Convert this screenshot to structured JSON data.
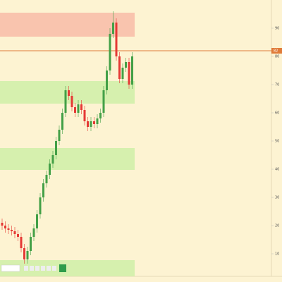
{
  "chart_data": {
    "type": "candlestick",
    "ylim": [
      2,
      100
    ],
    "yticks": [
      10,
      20,
      30,
      40,
      50,
      60,
      70,
      80,
      90
    ],
    "up_color": "#43a047",
    "down_color": "#e53935",
    "open": [
      21,
      20,
      19,
      18.5,
      18,
      17,
      16,
      12,
      8,
      11,
      16,
      19,
      24,
      30,
      35,
      38,
      42,
      45,
      50,
      54,
      60,
      68,
      66,
      62,
      60,
      63,
      61,
      57,
      55,
      57,
      56,
      58,
      60,
      68,
      75,
      88,
      92,
      80,
      72,
      76,
      78,
      70
    ],
    "high": [
      22.5,
      21.5,
      20.5,
      20,
      19.5,
      18.5,
      17.5,
      13.5,
      12.5,
      17.5,
      20.5,
      25.5,
      31.5,
      36.5,
      39.5,
      43.5,
      46.5,
      51.5,
      55.5,
      61.5,
      69.5,
      69.5,
      67.5,
      63.5,
      64.5,
      64.5,
      62.5,
      58.5,
      58.5,
      58.5,
      59.5,
      61.5,
      69.5,
      76.5,
      90,
      96,
      93.5,
      81.5,
      77.5,
      79.5,
      79.5,
      81.5
    ],
    "low": [
      18.5,
      17.5,
      17,
      16.5,
      15.5,
      14.5,
      10.5,
      6.5,
      6.5,
      9.5,
      14.5,
      17.5,
      22.5,
      28.5,
      33.5,
      36.5,
      40.5,
      43.5,
      48.5,
      52.5,
      58.5,
      64.5,
      60.5,
      58.5,
      58.5,
      59.5,
      55.5,
      53.5,
      53.5,
      54.5,
      54.5,
      56.5,
      58.5,
      66.5,
      73.5,
      86.5,
      78.5,
      70.5,
      70.5,
      74.5,
      68.5,
      68.5
    ],
    "close": [
      20,
      19,
      18.5,
      18,
      17,
      16,
      12,
      8,
      11,
      16,
      19,
      24,
      30,
      35,
      38,
      42,
      45,
      50,
      54,
      60,
      68,
      66,
      62,
      60,
      63,
      61,
      57,
      55,
      57,
      56,
      58,
      60,
      68,
      75,
      88,
      92,
      80,
      72,
      76,
      78,
      70,
      80
    ],
    "zones": [
      {
        "top": 95.5,
        "bottom": 87,
        "color": "#f9c4ae"
      },
      {
        "top": 71.25,
        "bottom": 63.25,
        "color": "#d6f0ae"
      },
      {
        "top": 47.5,
        "bottom": 39.75,
        "color": "#d6f0ae"
      },
      {
        "top": 7.75,
        "bottom": 2,
        "color": "#d6f0ae"
      }
    ],
    "hline": {
      "value": 82,
      "color": "#e07b39"
    }
  }
}
